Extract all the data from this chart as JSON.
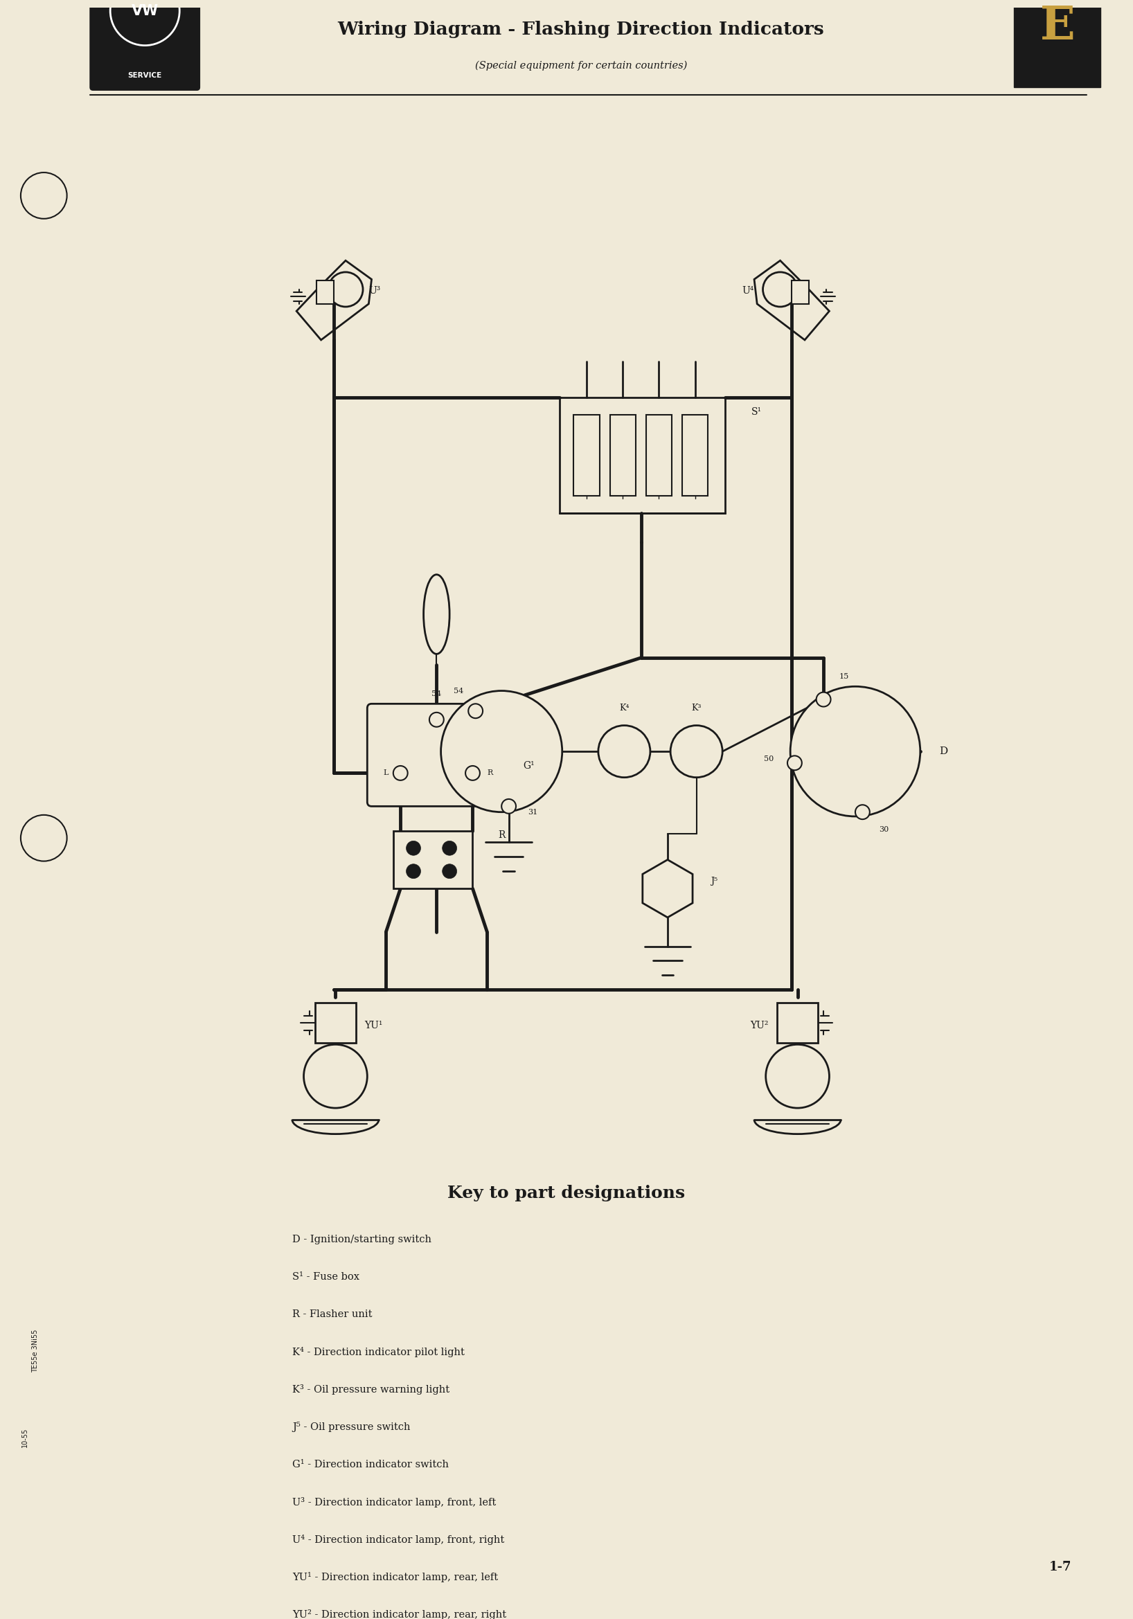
{
  "title": "Wiring Diagram - Flashing Direction Indicators",
  "subtitle": "(Special equipment for certain countries)",
  "bg_color": "#f0ead8",
  "line_color": "#1a1a1a",
  "key_title": "Key to part designations",
  "key_items": [
    [
      "D",
      " - Ignition/starting switch"
    ],
    [
      "S¹",
      " - Fuse box"
    ],
    [
      "R",
      " - Flasher unit"
    ],
    [
      "K⁴",
      " - Direction indicator pilot light"
    ],
    [
      "K³",
      " - Oil pressure warning light"
    ],
    [
      "J⁵",
      " - Oil pressure switch"
    ],
    [
      "G¹",
      " - Direction indicator switch"
    ],
    [
      "U³",
      " - Direction indicator lamp, front, left"
    ],
    [
      "U⁴",
      " - Direction indicator lamp, front, right"
    ],
    [
      "YU¹",
      " - Direction indicator lamp, rear, left"
    ],
    [
      "YU²",
      " - Direction indicator lamp, rear, right"
    ]
  ],
  "page_num": "1-7",
  "side_text1": "10-55",
  "side_text2": "TE55e 3Ni55"
}
